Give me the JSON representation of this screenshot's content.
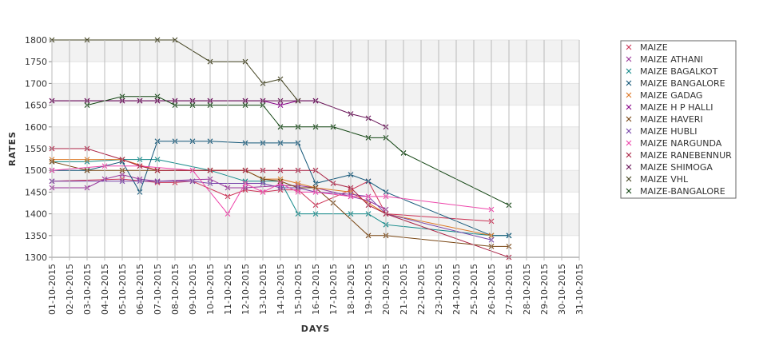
{
  "chart_data": {
    "type": "line",
    "xlabel": "DAYS",
    "ylabel": "RATES",
    "ylim": [
      1300,
      1800
    ],
    "yticks": [
      1300,
      1350,
      1400,
      1450,
      1500,
      1550,
      1600,
      1650,
      1700,
      1750,
      1800
    ],
    "categories": [
      "01-10-2015",
      "02-10-2015",
      "03-10-2015",
      "04-10-2015",
      "05-10-2015",
      "06-10-2015",
      "07-10-2015",
      "08-10-2015",
      "09-10-2015",
      "10-10-2015",
      "11-10-2015",
      "12-10-2015",
      "13-10-2015",
      "14-10-2015",
      "15-10-2015",
      "16-10-2015",
      "17-10-2015",
      "18-10-2015",
      "19-10-2015",
      "20-10-2015",
      "21-10-2015",
      "22-10-2015",
      "23-10-2015",
      "24-10-2015",
      "25-10-2015",
      "26-10-2015",
      "27-10-2015",
      "28-10-2015",
      "29-10-2015",
      "30-10-2015",
      "31-10-2015"
    ],
    "grid": "alternating horizontal bands",
    "legend_position": "right",
    "series": [
      {
        "name": "MAIZE",
        "color": "#cc3355",
        "points": [
          [
            1,
            1475
          ],
          [
            5,
            1480
          ],
          [
            7,
            1472
          ],
          [
            8,
            1472
          ],
          [
            9,
            1475
          ],
          [
            11,
            1440
          ],
          [
            12,
            1455
          ],
          [
            13,
            1450
          ],
          [
            14,
            1455
          ],
          [
            15,
            1455
          ],
          [
            16,
            1420
          ],
          [
            18,
            1455
          ],
          [
            19,
            1475
          ],
          [
            20,
            1400
          ],
          [
            26,
            1383
          ]
        ]
      },
      {
        "name": "MAIZE ATHANI",
        "color": "#993399",
        "points": [
          [
            1,
            1460
          ],
          [
            3,
            1460
          ],
          [
            4,
            1480
          ],
          [
            5,
            1490
          ],
          [
            6,
            1480
          ],
          [
            7,
            1475
          ],
          [
            10,
            1480
          ],
          [
            11,
            1460
          ],
          [
            12,
            1460
          ],
          [
            14,
            1465
          ],
          [
            15,
            1465
          ],
          [
            16,
            1460
          ],
          [
            18,
            1440
          ],
          [
            19,
            1430
          ],
          [
            20,
            1410
          ]
        ]
      },
      {
        "name": "MAIZE BAGALKOT",
        "color": "#118888",
        "points": [
          [
            1,
            1520
          ],
          [
            3,
            1520
          ],
          [
            5,
            1525
          ],
          [
            6,
            1525
          ],
          [
            7,
            1525
          ],
          [
            10,
            1500
          ],
          [
            12,
            1475
          ],
          [
            13,
            1475
          ],
          [
            14,
            1475
          ],
          [
            15,
            1400
          ],
          [
            16,
            1400
          ],
          [
            18,
            1400
          ],
          [
            19,
            1400
          ],
          [
            20,
            1375
          ],
          [
            26,
            1350
          ],
          [
            27,
            1350
          ]
        ]
      },
      {
        "name": "MAIZE BANGALORE",
        "color": "#115577",
        "points": [
          [
            1,
            1500
          ],
          [
            3,
            1500
          ],
          [
            5,
            1520
          ],
          [
            6,
            1450
          ],
          [
            7,
            1567
          ],
          [
            8,
            1567
          ],
          [
            9,
            1567
          ],
          [
            10,
            1567
          ],
          [
            12,
            1563
          ],
          [
            13,
            1563
          ],
          [
            14,
            1563
          ],
          [
            15,
            1563
          ],
          [
            16,
            1470
          ],
          [
            18,
            1490
          ],
          [
            19,
            1475
          ],
          [
            20,
            1450
          ],
          [
            26,
            1350
          ],
          [
            27,
            1350
          ]
        ]
      },
      {
        "name": "MAIZE GADAG",
        "color": "#dd7722",
        "points": [
          [
            1,
            1525
          ],
          [
            3,
            1525
          ],
          [
            5,
            1525
          ],
          [
            7,
            1500
          ],
          [
            10,
            1500
          ],
          [
            12,
            1500
          ],
          [
            13,
            1480
          ],
          [
            14,
            1480
          ],
          [
            15,
            1470
          ],
          [
            16,
            1460
          ],
          [
            18,
            1450
          ],
          [
            20,
            1400
          ],
          [
            26,
            1350
          ]
        ]
      },
      {
        "name": "MAIZE H P HALLI",
        "color": "#880088",
        "points": [
          [
            1,
            1660
          ],
          [
            3,
            1660
          ],
          [
            5,
            1660
          ],
          [
            6,
            1660
          ],
          [
            7,
            1660
          ],
          [
            8,
            1660
          ],
          [
            9,
            1660
          ],
          [
            10,
            1660
          ],
          [
            12,
            1660
          ],
          [
            13,
            1660
          ],
          [
            14,
            1650
          ],
          [
            15,
            1660
          ],
          [
            16,
            1660
          ]
        ]
      },
      {
        "name": "MAIZE HAVERI",
        "color": "#774411",
        "points": [
          [
            1,
            1520
          ],
          [
            3,
            1500
          ],
          [
            5,
            1500
          ],
          [
            7,
            1500
          ],
          [
            10,
            1500
          ],
          [
            12,
            1500
          ],
          [
            13,
            1480
          ],
          [
            14,
            1475
          ],
          [
            15,
            1460
          ],
          [
            16,
            1460
          ],
          [
            17,
            1425
          ],
          [
            19,
            1350
          ],
          [
            20,
            1350
          ],
          [
            26,
            1325
          ],
          [
            27,
            1325
          ]
        ]
      },
      {
        "name": "MAIZE HUBLI",
        "color": "#7744aa",
        "points": [
          [
            1,
            1475
          ],
          [
            5,
            1475
          ],
          [
            6,
            1475
          ],
          [
            7,
            1475
          ],
          [
            9,
            1475
          ],
          [
            10,
            1470
          ],
          [
            12,
            1470
          ],
          [
            13,
            1470
          ],
          [
            14,
            1460
          ],
          [
            15,
            1460
          ],
          [
            16,
            1450
          ],
          [
            18,
            1445
          ],
          [
            19,
            1440
          ],
          [
            20,
            1400
          ],
          [
            26,
            1340
          ]
        ]
      },
      {
        "name": "MAIZE NARGUNDA",
        "color": "#ee44aa",
        "points": [
          [
            1,
            1500
          ],
          [
            4,
            1510
          ],
          [
            6,
            1510
          ],
          [
            9,
            1500
          ],
          [
            11,
            1400
          ],
          [
            12,
            1470
          ],
          [
            13,
            1450
          ],
          [
            14,
            1470
          ],
          [
            15,
            1450
          ],
          [
            16,
            1450
          ],
          [
            18,
            1440
          ],
          [
            19,
            1440
          ],
          [
            20,
            1440
          ],
          [
            26,
            1410
          ]
        ]
      },
      {
        "name": "MAIZE RANEBENNUR",
        "color": "#aa2244",
        "points": [
          [
            1,
            1550
          ],
          [
            3,
            1550
          ],
          [
            5,
            1525
          ],
          [
            6,
            1510
          ],
          [
            7,
            1500
          ],
          [
            10,
            1500
          ],
          [
            12,
            1500
          ],
          [
            13,
            1500
          ],
          [
            14,
            1500
          ],
          [
            15,
            1500
          ],
          [
            16,
            1500
          ],
          [
            17,
            1470
          ],
          [
            18,
            1460
          ],
          [
            19,
            1420
          ],
          [
            20,
            1400
          ],
          [
            27,
            1300
          ]
        ]
      },
      {
        "name": "MAIZE SHIMOGA",
        "color": "#661155",
        "points": [
          [
            1,
            1660
          ],
          [
            3,
            1660
          ],
          [
            5,
            1660
          ],
          [
            6,
            1660
          ],
          [
            7,
            1660
          ],
          [
            8,
            1660
          ],
          [
            9,
            1660
          ],
          [
            10,
            1660
          ],
          [
            12,
            1660
          ],
          [
            13,
            1660
          ],
          [
            14,
            1660
          ],
          [
            15,
            1660
          ],
          [
            16,
            1660
          ],
          [
            18,
            1630
          ],
          [
            19,
            1620
          ],
          [
            20,
            1600
          ]
        ]
      },
      {
        "name": "MAIZE VHL",
        "color": "#444422",
        "points": [
          [
            1,
            1800
          ],
          [
            3,
            1800
          ],
          [
            7,
            1800
          ],
          [
            8,
            1800
          ],
          [
            10,
            1750
          ],
          [
            12,
            1750
          ],
          [
            13,
            1700
          ],
          [
            14,
            1710
          ],
          [
            15,
            1660
          ]
        ]
      },
      {
        "name": "MAIZE-BANGALORE",
        "color": "#114411",
        "points": [
          [
            3,
            1650
          ],
          [
            5,
            1670
          ],
          [
            7,
            1670
          ],
          [
            8,
            1650
          ],
          [
            9,
            1650
          ],
          [
            10,
            1650
          ],
          [
            12,
            1650
          ],
          [
            13,
            1650
          ],
          [
            14,
            1600
          ],
          [
            15,
            1600
          ],
          [
            16,
            1600
          ],
          [
            17,
            1600
          ],
          [
            19,
            1575
          ],
          [
            20,
            1575
          ],
          [
            21,
            1540
          ],
          [
            27,
            1420
          ]
        ]
      }
    ]
  }
}
